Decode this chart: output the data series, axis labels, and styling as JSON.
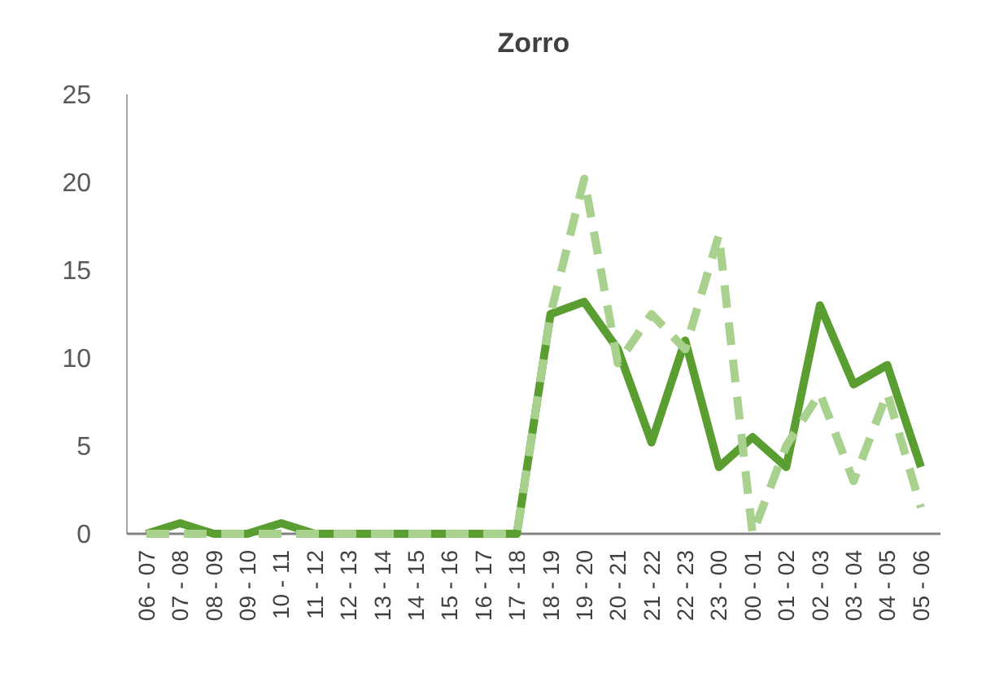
{
  "chart_data": {
    "type": "line",
    "title": "Zorro",
    "categories": [
      "06 - 07",
      "07 - 08",
      "08 - 09",
      "09 - 10",
      "10 - 11",
      "11 - 12",
      "12 - 13",
      "13 - 14",
      "14 - 15",
      "15 - 16",
      "16 - 17",
      "17 - 18",
      "18 - 19",
      "19 - 20",
      "20 - 21",
      "21 - 22",
      "22 - 23",
      "23 - 00",
      "00 - 01",
      "01 - 02",
      "02 - 03",
      "03 - 04",
      "04 - 05",
      "05 - 06"
    ],
    "series": [
      {
        "color": "#5a9e32",
        "line_style": "solid",
        "values": [
          0,
          0.6,
          0,
          0,
          0.6,
          0,
          0,
          0,
          0,
          0,
          0,
          0,
          12.5,
          13.2,
          10.5,
          5.2,
          11,
          3.8,
          5.5,
          3.8,
          13,
          8.5,
          9.6,
          3.8
        ]
      },
      {
        "color": "#a9d18e",
        "line_style": "dashed",
        "values": [
          0,
          0,
          0,
          0,
          0,
          0,
          0,
          0,
          0,
          0,
          0,
          0,
          12.5,
          20.2,
          9.7,
          12.5,
          10.5,
          17,
          0,
          5,
          8,
          3,
          8,
          1.5
        ]
      }
    ],
    "ylim": [
      0,
      25
    ],
    "yticks": [
      0,
      5,
      10,
      15,
      20,
      25
    ],
    "grid": false
  }
}
